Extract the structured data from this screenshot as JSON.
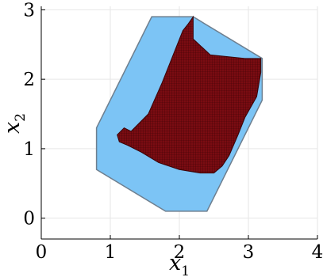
{
  "chart_data": {
    "type": "area",
    "xlabel": "x",
    "xlabel_sub": "1",
    "ylabel": "x",
    "ylabel_sub": "2",
    "xlim": [
      0,
      4
    ],
    "ylim": [
      -0.3,
      3.05
    ],
    "x_ticks": [
      0,
      1,
      2,
      3,
      4
    ],
    "y_ticks": [
      0,
      1,
      2,
      3
    ],
    "x_tick_labels": [
      "0",
      "1",
      "2",
      "3",
      "4"
    ],
    "y_tick_labels": [
      "0",
      "1",
      "2",
      "3"
    ],
    "grid": true,
    "legend": "none",
    "series": [
      {
        "kind": "polygon",
        "color": "#7cc4f5",
        "edge_color": "#6e7f8f",
        "points": [
          [
            1.8,
            0.1
          ],
          [
            2.4,
            0.1
          ],
          [
            3.2,
            1.7
          ],
          [
            3.2,
            2.3
          ],
          [
            2.2,
            2.9
          ],
          [
            1.6,
            2.9
          ],
          [
            0.8,
            1.3
          ],
          [
            0.8,
            0.7
          ]
        ]
      },
      {
        "kind": "mesh",
        "color": "#7a0c12",
        "mesh_color": "#3a0206",
        "outline": [
          [
            1.1,
            1.2
          ],
          [
            1.2,
            1.3
          ],
          [
            1.3,
            1.25
          ],
          [
            1.55,
            1.5
          ],
          [
            1.75,
            1.95
          ],
          [
            1.95,
            2.45
          ],
          [
            2.05,
            2.7
          ],
          [
            2.13,
            2.8
          ],
          [
            2.2,
            2.9
          ],
          [
            2.2,
            2.58
          ],
          [
            2.45,
            2.35
          ],
          [
            2.95,
            2.3
          ],
          [
            3.18,
            2.3
          ],
          [
            3.18,
            2.1
          ],
          [
            3.12,
            1.75
          ],
          [
            2.95,
            1.45
          ],
          [
            2.85,
            1.2
          ],
          [
            2.72,
            0.9
          ],
          [
            2.62,
            0.75
          ],
          [
            2.5,
            0.65
          ],
          [
            2.3,
            0.65
          ],
          [
            2.0,
            0.7
          ],
          [
            1.7,
            0.8
          ],
          [
            1.45,
            0.95
          ],
          [
            1.25,
            1.05
          ],
          [
            1.13,
            1.1
          ]
        ]
      }
    ]
  }
}
